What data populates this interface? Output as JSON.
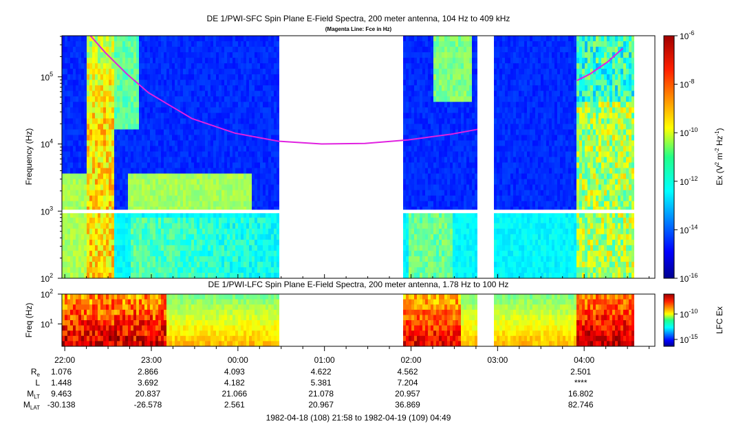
{
  "chart_data": [
    {
      "type": "heatmap",
      "title": "DE 1/PWI-SFC  Spin Plane E-Field Spectra, 200 meter antenna, 104 Hz to 409 kHz",
      "subtitle": "(Magenta Line: Fce in Hz)",
      "ylabel": "Frequency (Hz)",
      "yscale": "log",
      "ylim": [
        100,
        409000
      ],
      "yticks": [
        {
          "value": 100,
          "base": "10",
          "exp": "2"
        },
        {
          "value": 1000,
          "base": "10",
          "exp": "3"
        },
        {
          "value": 10000,
          "base": "10",
          "exp": "4"
        },
        {
          "value": 100000,
          "base": "10",
          "exp": "5"
        }
      ],
      "colorbar": {
        "label": "Ex (V² m⁻² Hz⁻¹)",
        "label_parts": {
          "base": "Ex (V",
          "e1": "2",
          "mid": " m",
          "e2": "-2",
          "mid2": " Hz",
          "e3": "-1",
          "end": ")"
        },
        "scale": "log",
        "range": [
          1e-16,
          1e-06
        ],
        "ticks": [
          {
            "value": 1e-06,
            "base": "10",
            "exp": "-6"
          },
          {
            "value": 1e-08,
            "base": "10",
            "exp": "-8"
          },
          {
            "value": 1e-10,
            "base": "10",
            "exp": "-10"
          },
          {
            "value": 1e-12,
            "base": "10",
            "exp": "-12"
          },
          {
            "value": 1e-14,
            "base": "10",
            "exp": "-14"
          },
          {
            "value": 1e-16,
            "base": "10",
            "exp": "-16"
          }
        ]
      },
      "data_gaps_hours": [
        [
          2.5,
          3.95
        ],
        [
          4.8,
          5.0
        ]
      ],
      "magenta_line_fce": {
        "name": "Fce in Hz",
        "color": "#e020e0",
        "points": [
          [
            0.33,
            409000
          ],
          [
            0.5,
            230000
          ],
          [
            0.75,
            110000
          ],
          [
            1.0,
            58000
          ],
          [
            1.5,
            24000
          ],
          [
            2.0,
            14500
          ],
          [
            2.5,
            11000
          ],
          [
            3.0,
            10000
          ],
          [
            3.5,
            10200
          ],
          [
            4.0,
            11500
          ],
          [
            4.5,
            14000
          ],
          [
            4.8,
            16500
          ]
        ],
        "points_segment2": [
          [
            5.95,
            88000
          ],
          [
            6.1,
            110000
          ],
          [
            6.3,
            165000
          ],
          [
            6.48,
            265000
          ]
        ]
      }
    },
    {
      "type": "heatmap",
      "title": "DE 1/PWI-LFC  Spin Plane E-Field Spectra, 200 meter antenna, 1.78 Hz to 100 Hz",
      "ylabel": "Freq (Hz)",
      "yscale": "log",
      "ylim": [
        1.78,
        100
      ],
      "yticks": [
        {
          "value": 10,
          "base": "10",
          "exp": "1"
        },
        {
          "value": 100,
          "base": "10",
          "exp": "2"
        }
      ],
      "colorbar": {
        "label": "LFC Ex",
        "scale": "log",
        "ticks": [
          {
            "value": 1e-10,
            "base": "10",
            "exp": "-10"
          },
          {
            "value": 1e-15,
            "base": "10",
            "exp": "-15"
          }
        ]
      }
    }
  ],
  "time_axis": {
    "start_hour": 21.967,
    "end_hour": 28.817,
    "tick_labels": [
      "22:00",
      "23:00",
      "00:00",
      "01:00",
      "02:00",
      "03:00",
      "04:00"
    ],
    "tick_hours": [
      22,
      23,
      24,
      25,
      26,
      27,
      28
    ]
  },
  "ephemeris": {
    "rows": [
      {
        "label": "R",
        "sub": "e",
        "values": [
          "1.076",
          "2.866",
          "4.093",
          "4.622",
          "4.562",
          "",
          "2.501"
        ]
      },
      {
        "label": "L",
        "sub": "",
        "values": [
          "1.448",
          "3.692",
          "4.182",
          "5.381",
          "7.204",
          "",
          "****"
        ]
      },
      {
        "label": "M",
        "sub": "LT",
        "values": [
          "9.463",
          "20.837",
          "21.066",
          "21.078",
          "20.957",
          "",
          "16.802"
        ]
      },
      {
        "label": "M",
        "sub": "LAT",
        "values": [
          "-30.138",
          "-26.578",
          "2.561",
          "20.967",
          "36.869",
          "",
          "82.746"
        ]
      }
    ]
  },
  "footer": {
    "range_text": "1982-04-18 (108) 21:58 to 1982-04-19 (109) 04:49"
  }
}
